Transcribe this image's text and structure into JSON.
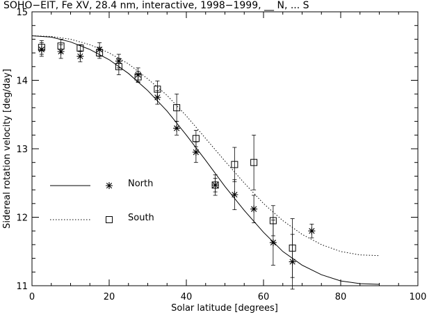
{
  "chart_data": {
    "type": "scatter",
    "title": "SOHO−EIT, Fe XV, 28.4 nm, interactive, 1998−1999, __ N, ... S",
    "xlabel": "Solar latitude [degrees]",
    "ylabel": "Sidereal rotation velocity [deg/day]",
    "xlim": [
      0,
      100
    ],
    "ylim": [
      11,
      15
    ],
    "x_ticks": [
      "0",
      "20",
      "40",
      "60",
      "80",
      "100"
    ],
    "y_ticks": [
      "11",
      "12",
      "13",
      "14",
      "15"
    ],
    "grid": false,
    "legend": "left-middle",
    "series": [
      {
        "name": "North",
        "marker": "asterisk",
        "line_style": "solid",
        "points": [
          {
            "x": 2.5,
            "y": 14.45,
            "err": 0.1
          },
          {
            "x": 7.5,
            "y": 14.42,
            "err": 0.1
          },
          {
            "x": 12.5,
            "y": 14.35,
            "err": 0.08
          },
          {
            "x": 17.5,
            "y": 14.45,
            "err": 0.1
          },
          {
            "x": 22.5,
            "y": 14.28,
            "err": 0.1
          },
          {
            "x": 27.5,
            "y": 14.08,
            "err": 0.1
          },
          {
            "x": 32.5,
            "y": 13.75,
            "err": 0.1
          },
          {
            "x": 37.5,
            "y": 13.3,
            "err": 0.1
          },
          {
            "x": 42.5,
            "y": 12.95,
            "err": 0.15
          },
          {
            "x": 47.5,
            "y": 12.47,
            "err": 0.1
          },
          {
            "x": 52.5,
            "y": 12.33,
            "err": 0.22
          },
          {
            "x": 57.5,
            "y": 12.12,
            "err": 0.2
          },
          {
            "x": 62.5,
            "y": 11.63,
            "err": 0.33
          },
          {
            "x": 67.5,
            "y": 11.35,
            "err": 0.4
          },
          {
            "x": 72.5,
            "y": 11.8,
            "err": 0.1
          }
        ],
        "fit_curve": [
          [
            0,
            14.65
          ],
          [
            5,
            14.63
          ],
          [
            10,
            14.56
          ],
          [
            15,
            14.45
          ],
          [
            20,
            14.3
          ],
          [
            25,
            14.1
          ],
          [
            30,
            13.85
          ],
          [
            35,
            13.55
          ],
          [
            40,
            13.2
          ],
          [
            45,
            12.83
          ],
          [
            50,
            12.45
          ],
          [
            55,
            12.1
          ],
          [
            60,
            11.78
          ],
          [
            65,
            11.5
          ],
          [
            70,
            11.3
          ],
          [
            75,
            11.16
          ],
          [
            80,
            11.07
          ],
          [
            85,
            11.03
          ],
          [
            90,
            11.02
          ]
        ]
      },
      {
        "name": "South",
        "marker": "square",
        "line_style": "dotted",
        "points": [
          {
            "x": 2.5,
            "y": 14.48,
            "err": 0.1
          },
          {
            "x": 7.5,
            "y": 14.5,
            "err": 0.1
          },
          {
            "x": 12.5,
            "y": 14.47,
            "err": 0.05
          },
          {
            "x": 17.5,
            "y": 14.4,
            "err": 0.08
          },
          {
            "x": 22.5,
            "y": 14.2,
            "err": 0.12
          },
          {
            "x": 27.5,
            "y": 14.05,
            "err": 0.08
          },
          {
            "x": 32.5,
            "y": 13.87,
            "err": 0.12
          },
          {
            "x": 37.5,
            "y": 13.6,
            "err": 0.2
          },
          {
            "x": 42.5,
            "y": 13.15,
            "err": 0.12
          },
          {
            "x": 47.5,
            "y": 12.47,
            "err": 0.15
          },
          {
            "x": 52.5,
            "y": 12.77,
            "err": 0.25
          },
          {
            "x": 57.5,
            "y": 12.8,
            "err": 0.4
          },
          {
            "x": 62.5,
            "y": 11.95,
            "err": 0.22
          },
          {
            "x": 67.5,
            "y": 11.55,
            "err": 0.43
          }
        ],
        "fit_curve": [
          [
            0,
            14.65
          ],
          [
            5,
            14.64
          ],
          [
            10,
            14.6
          ],
          [
            15,
            14.52
          ],
          [
            20,
            14.4
          ],
          [
            25,
            14.24
          ],
          [
            30,
            14.02
          ],
          [
            35,
            13.78
          ],
          [
            40,
            13.48
          ],
          [
            45,
            13.15
          ],
          [
            50,
            12.82
          ],
          [
            55,
            12.5
          ],
          [
            60,
            12.2
          ],
          [
            65,
            11.95
          ],
          [
            70,
            11.75
          ],
          [
            75,
            11.6
          ],
          [
            80,
            11.5
          ],
          [
            85,
            11.45
          ],
          [
            90,
            11.44
          ]
        ]
      }
    ]
  }
}
